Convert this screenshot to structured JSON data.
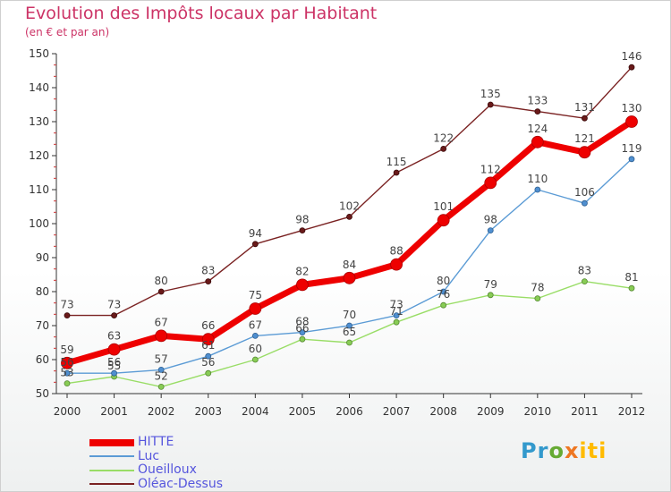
{
  "header": {
    "title": "Evolution des Impôts locaux par Habitant",
    "subtitle": "(en € et par an)"
  },
  "logo": {
    "text": "Proxiti",
    "parts": [
      "Pr",
      "o",
      "x",
      "iti"
    ]
  },
  "chart_data": {
    "type": "line",
    "title": "Evolution des Impôts locaux par Habitant",
    "subtitle": "(en € et par an)",
    "xlabel": "",
    "ylabel": "",
    "ylim": [
      50,
      150
    ],
    "yticks": [
      50,
      60,
      70,
      80,
      90,
      100,
      110,
      120,
      130,
      140,
      150
    ],
    "categories": [
      "2000",
      "2001",
      "2002",
      "2003",
      "2004",
      "2005",
      "2006",
      "2007",
      "2008",
      "2009",
      "2010",
      "2011",
      "2012"
    ],
    "legend_position": "bottom-left",
    "grid": false,
    "series": [
      {
        "name": "HITTE",
        "color": "#ee0000",
        "values": [
          59,
          63,
          67,
          66,
          75,
          82,
          84,
          88,
          101,
          112,
          124,
          121,
          130
        ]
      },
      {
        "name": "Luc",
        "color": "#5b9bd5",
        "values": [
          56,
          56,
          57,
          61,
          67,
          68,
          70,
          73,
          80,
          98,
          110,
          106,
          119
        ]
      },
      {
        "name": "Oueilloux",
        "color": "#99dd66",
        "values": [
          53,
          55,
          52,
          56,
          60,
          66,
          65,
          71,
          76,
          79,
          78,
          83,
          81
        ]
      },
      {
        "name": "Oléac-Dessus",
        "color": "#7a2222",
        "values": [
          73,
          73,
          80,
          83,
          94,
          98,
          102,
          115,
          122,
          135,
          133,
          131,
          146
        ]
      }
    ]
  }
}
